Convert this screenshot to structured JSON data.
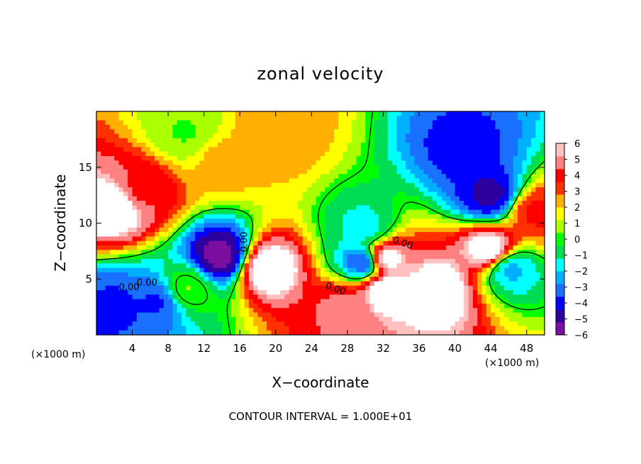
{
  "chart_data": {
    "type": "heatmap",
    "title": "zonal velocity",
    "xlabel": "X−coordinate",
    "ylabel": "Z−coordinate",
    "x_unit_left": "(×1000 m)",
    "x_unit_right": "(×1000 m)",
    "xlim": [
      0,
      50
    ],
    "ylim": [
      0,
      20
    ],
    "x_ticks": [
      4,
      8,
      12,
      16,
      20,
      24,
      28,
      32,
      36,
      40,
      44,
      48
    ],
    "y_ticks": [
      5,
      10,
      15
    ],
    "colorbar": {
      "min": -6,
      "max": 6,
      "ticks": [
        6,
        5,
        4,
        3,
        2,
        1,
        0,
        -1,
        -2,
        -3,
        -4,
        -5,
        -6
      ],
      "colors": [
        "#7a0fa0",
        "#2e00a0",
        "#0000ff",
        "#1a70ff",
        "#00b0ff",
        "#00ffff",
        "#00dd55",
        "#00ff00",
        "#aaff00",
        "#ffff00",
        "#ffb000",
        "#ff3000",
        "#ff0000",
        "#ff8080",
        "#ffc0c0"
      ]
    },
    "contour_labels": [
      "0.00",
      "0.00",
      "0.00",
      "0.00",
      "0.00"
    ],
    "footer": "CONTOUR INTERVAL = 1.000E+01",
    "field_features": [
      {
        "x": 20,
        "z": 18,
        "value": 2.8
      },
      {
        "x": 14,
        "z": 15.5,
        "value": 2.5
      },
      {
        "x": 5,
        "z": 13,
        "value": 4.5
      },
      {
        "x": 2,
        "z": 11.5,
        "value": 7
      },
      {
        "x": 44,
        "z": 12.5,
        "value": -5
      },
      {
        "x": 41,
        "z": 16.5,
        "value": -4.2
      },
      {
        "x": 14,
        "z": 7,
        "value": -6
      },
      {
        "x": 19,
        "z": 6,
        "value": 7
      },
      {
        "x": 30,
        "z": 6.5,
        "value": -4.5
      },
      {
        "x": 32,
        "z": 6.8,
        "value": 7
      },
      {
        "x": 32,
        "z": 4,
        "value": 7
      },
      {
        "x": 38,
        "z": 4,
        "value": 7
      },
      {
        "x": 28,
        "z": 2.5,
        "value": 5
      },
      {
        "x": 2,
        "z": 2.5,
        "value": -4
      },
      {
        "x": 7,
        "z": 3,
        "value": -4
      },
      {
        "x": 44,
        "z": 7.5,
        "value": 7
      },
      {
        "x": 49,
        "z": 11,
        "value": 4
      },
      {
        "x": 10,
        "z": 4,
        "value": 0.5
      },
      {
        "x": 30,
        "z": 9.5,
        "value": -1.6
      },
      {
        "x": 46,
        "z": 6,
        "value": -2.5
      },
      {
        "x": 10,
        "z": 18,
        "value": 0.4
      }
    ]
  }
}
